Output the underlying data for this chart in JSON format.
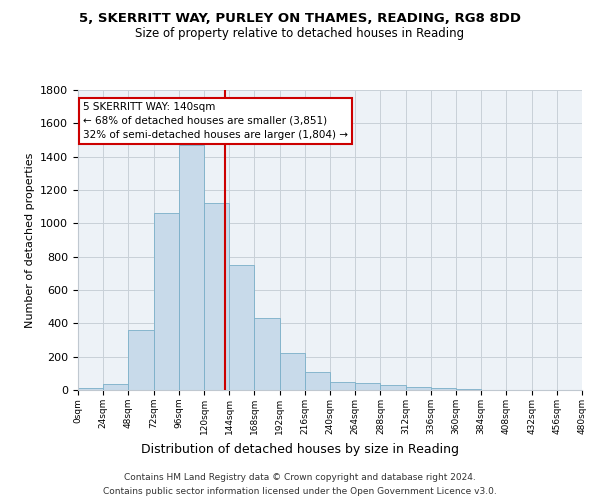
{
  "title_line1": "5, SKERRITT WAY, PURLEY ON THAMES, READING, RG8 8DD",
  "title_line2": "Size of property relative to detached houses in Reading",
  "xlabel": "Distribution of detached houses by size in Reading",
  "ylabel": "Number of detached properties",
  "bar_color": "#c8daea",
  "bar_edge_color": "#7aafc8",
  "bin_edges": [
    0,
    24,
    48,
    72,
    96,
    120,
    144,
    168,
    192,
    216,
    240,
    264,
    288,
    312,
    336,
    360,
    384,
    408,
    432,
    456,
    480
  ],
  "bar_heights": [
    10,
    35,
    360,
    1060,
    1470,
    1120,
    750,
    435,
    225,
    110,
    50,
    45,
    30,
    20,
    10,
    5,
    0,
    0,
    0,
    0
  ],
  "property_size": 140,
  "vline_color": "#cc0000",
  "annotation_text": "5 SKERRITT WAY: 140sqm\n← 68% of detached houses are smaller (3,851)\n32% of semi-detached houses are larger (1,804) →",
  "annotation_box_color": "#ffffff",
  "annotation_box_edge": "#cc0000",
  "ylim": [
    0,
    1800
  ],
  "yticks": [
    0,
    200,
    400,
    600,
    800,
    1000,
    1200,
    1400,
    1600,
    1800
  ],
  "footer_line1": "Contains HM Land Registry data © Crown copyright and database right 2024.",
  "footer_line2": "Contains public sector information licensed under the Open Government Licence v3.0.",
  "plot_bg_color": "#edf2f7"
}
